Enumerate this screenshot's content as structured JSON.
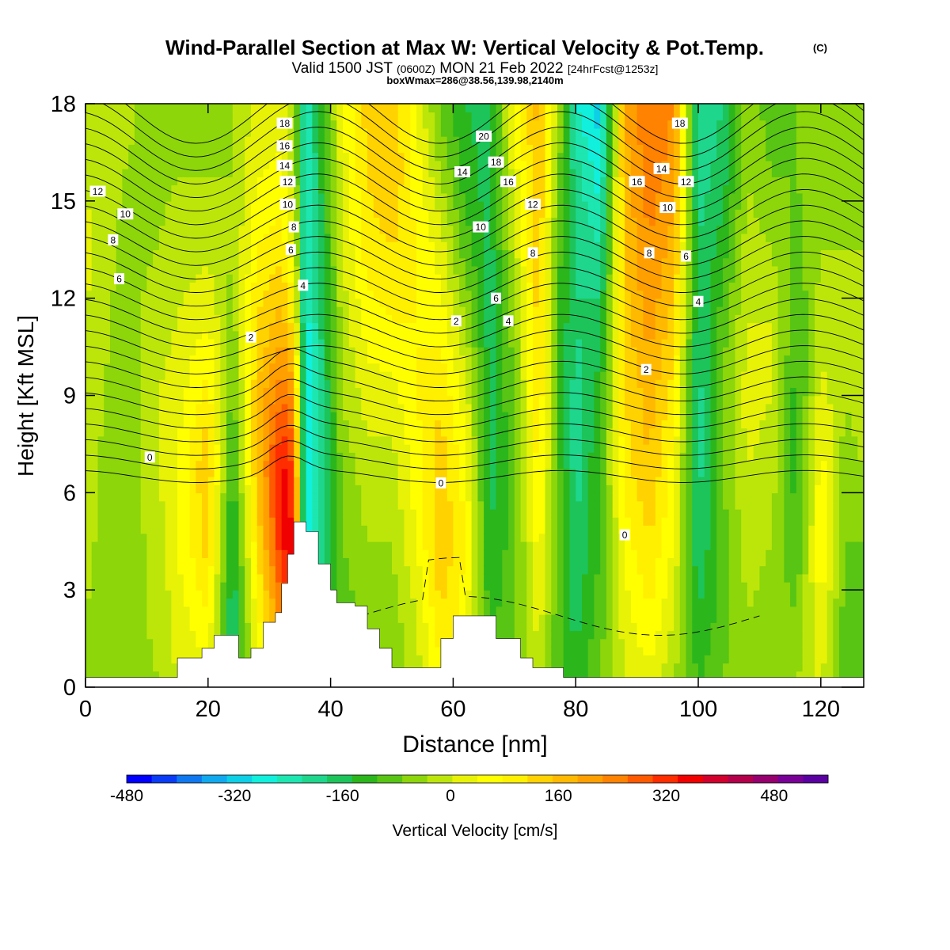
{
  "title": {
    "main": "Wind-Parallel Section at Max W: Vertical Velocity & Pot.Temp.",
    "copyright": "(C)",
    "valid_prefix": "Valid 1500 JST",
    "valid_utc": "(0600Z)",
    "valid_date": "MON 21 Feb 2022",
    "forecast": "[24hrFcst@1253z]",
    "box_info": "boxWmax=286@38.56,139.98,2140m"
  },
  "chart_data": {
    "type": "heatmap",
    "xlabel": "Distance [nm]",
    "ylabel": "Height [Kft MSL]",
    "xlim": [
      0,
      127
    ],
    "ylim": [
      0,
      18
    ],
    "x_ticks": [
      "0",
      "20",
      "40",
      "60",
      "80",
      "100",
      "120"
    ],
    "y_ticks": [
      "0",
      "3",
      "6",
      "9",
      "12",
      "15",
      "18"
    ],
    "x_tick_values": [
      0,
      20,
      40,
      60,
      80,
      100,
      120
    ],
    "y_tick_values": [
      0,
      3,
      6,
      9,
      12,
      15,
      18
    ],
    "colorbar": {
      "label": "Vertical Velocity [cm/s]",
      "min": -480,
      "max": 560,
      "step": 40,
      "tick_labels": [
        "-480",
        "-320",
        "-160",
        "0",
        "160",
        "320",
        "480"
      ],
      "tick_values": [
        -480,
        -320,
        -160,
        0,
        160,
        320,
        480
      ],
      "colors": [
        "#0000ff",
        "#0a3cf5",
        "#0f78f0",
        "#10a9f0",
        "#0dcfe6",
        "#11f0dc",
        "#1de6b0",
        "#1ed68c",
        "#1cc45a",
        "#2bb61c",
        "#58c414",
        "#8cd60a",
        "#bce60a",
        "#e8f206",
        "#ffff00",
        "#fff000",
        "#ffd200",
        "#ffba00",
        "#ffa000",
        "#ff8200",
        "#ff5a00",
        "#ff2d00",
        "#f00000",
        "#d2002d",
        "#b4004b",
        "#96006e",
        "#780096",
        "#5a00a0"
      ]
    },
    "columns": [
      {
        "x": 0,
        "w": [
          0,
          0,
          10,
          20,
          30,
          40,
          50,
          40,
          30
        ]
      },
      {
        "x": 6,
        "w": [
          -20,
          -20,
          -30,
          -40,
          -30,
          -20,
          -10,
          0,
          10
        ]
      },
      {
        "x": 12,
        "w": [
          0,
          10,
          20,
          40,
          40,
          20,
          0,
          -10,
          -20
        ]
      },
      {
        "x": 15,
        "w": [
          40,
          60,
          80,
          80,
          60,
          40,
          20,
          0,
          -10
        ]
      },
      {
        "x": 20,
        "w": [
          60,
          120,
          180,
          200,
          140,
          80,
          30,
          0,
          -20
        ]
      },
      {
        "x": 24,
        "w": [
          -140,
          -160,
          -140,
          -100,
          -60,
          -20,
          0,
          0,
          0
        ]
      },
      {
        "x": 28,
        "w": [
          60,
          100,
          160,
          200,
          200,
          160,
          120,
          80,
          50
        ]
      },
      {
        "x": 32,
        "w": [
          200,
          300,
          400,
          420,
          320,
          220,
          150,
          90,
          60
        ]
      },
      {
        "x": 34,
        "w": [
          300,
          380,
          420,
          360,
          260,
          140,
          60,
          20,
          0
        ]
      },
      {
        "x": 36,
        "w": [
          -220,
          -280,
          -300,
          -300,
          -280,
          -260,
          -240,
          -240,
          -240
        ]
      },
      {
        "x": 38,
        "w": [
          -160,
          -200,
          -220,
          -220,
          -200,
          -180,
          -160,
          -140,
          -120
        ]
      },
      {
        "x": 42,
        "w": [
          -100,
          -60,
          -40,
          -20,
          0,
          20,
          40,
          60,
          80
        ]
      },
      {
        "x": 46,
        "w": [
          -60,
          -30,
          0,
          20,
          60,
          100,
          140,
          160,
          180
        ]
      },
      {
        "x": 50,
        "w": [
          -40,
          -20,
          0,
          20,
          60,
          120,
          160,
          200,
          200
        ]
      },
      {
        "x": 54,
        "w": [
          20,
          40,
          80,
          100,
          120,
          120,
          120,
          100,
          80
        ]
      },
      {
        "x": 58,
        "w": [
          100,
          160,
          200,
          180,
          160,
          100,
          60,
          0,
          -60
        ]
      },
      {
        "x": 62,
        "w": [
          80,
          100,
          120,
          100,
          60,
          0,
          -60,
          -100,
          -120
        ]
      },
      {
        "x": 66,
        "w": [
          -60,
          -100,
          -120,
          -140,
          -140,
          -140,
          -140,
          -140,
          -140
        ]
      },
      {
        "x": 70,
        "w": [
          -20,
          -40,
          -60,
          -60,
          -40,
          -20,
          20,
          60,
          100
        ]
      },
      {
        "x": 74,
        "w": [
          20,
          60,
          100,
          140,
          160,
          180,
          200,
          200,
          220
        ]
      },
      {
        "x": 77,
        "w": [
          -60,
          -60,
          -40,
          -60,
          -80,
          -80,
          -60,
          -20,
          20
        ]
      },
      {
        "x": 80,
        "w": [
          -100,
          -140,
          -160,
          -180,
          -180,
          -160,
          -160,
          -180,
          -240
        ]
      },
      {
        "x": 84,
        "w": [
          -40,
          -60,
          -80,
          -80,
          -100,
          -140,
          -200,
          -260,
          -300
        ]
      },
      {
        "x": 88,
        "w": [
          40,
          60,
          100,
          140,
          160,
          180,
          200,
          220,
          240
        ]
      },
      {
        "x": 92,
        "w": [
          60,
          120,
          160,
          200,
          220,
          260,
          280,
          300,
          320
        ]
      },
      {
        "x": 96,
        "w": [
          0,
          40,
          80,
          100,
          140,
          180,
          220,
          260,
          280
        ]
      },
      {
        "x": 100,
        "w": [
          -80,
          -120,
          -160,
          -180,
          -180,
          -160,
          -160,
          -180,
          -200
        ]
      },
      {
        "x": 104,
        "w": [
          -40,
          -60,
          -60,
          -40,
          -40,
          -60,
          -100,
          -140,
          -160
        ]
      },
      {
        "x": 108,
        "w": [
          0,
          0,
          20,
          40,
          60,
          40,
          20,
          0,
          -20
        ]
      },
      {
        "x": 112,
        "w": [
          -40,
          -20,
          0,
          20,
          40,
          40,
          0,
          -40,
          -60
        ]
      },
      {
        "x": 116,
        "w": [
          0,
          -40,
          -80,
          -100,
          -100,
          -80,
          -60,
          -40,
          -40
        ]
      },
      {
        "x": 120,
        "w": [
          40,
          80,
          120,
          100,
          60,
          20,
          0,
          -20,
          -20
        ]
      },
      {
        "x": 124,
        "w": [
          -60,
          -60,
          -40,
          -20,
          0,
          20,
          0,
          -20,
          -40
        ]
      },
      {
        "x": 127,
        "w": [
          -80,
          -60,
          -40,
          0,
          20,
          20,
          0,
          -20,
          -40
        ]
      }
    ],
    "terrain": [
      {
        "x": 0,
        "h": 0.3
      },
      {
        "x": 14,
        "h": 0.3
      },
      {
        "x": 15,
        "h": 0.9
      },
      {
        "x": 19,
        "h": 1.2
      },
      {
        "x": 21,
        "h": 1.6
      },
      {
        "x": 24,
        "h": 1.6
      },
      {
        "x": 25,
        "h": 0.9
      },
      {
        "x": 27,
        "h": 1.2
      },
      {
        "x": 29,
        "h": 2.0
      },
      {
        "x": 31,
        "h": 2.3
      },
      {
        "x": 32,
        "h": 3.2
      },
      {
        "x": 33,
        "h": 4.1
      },
      {
        "x": 34,
        "h": 5.1
      },
      {
        "x": 36,
        "h": 4.8
      },
      {
        "x": 38,
        "h": 3.8
      },
      {
        "x": 40,
        "h": 3.0
      },
      {
        "x": 41,
        "h": 2.6
      },
      {
        "x": 44,
        "h": 2.5
      },
      {
        "x": 46,
        "h": 1.8
      },
      {
        "x": 48,
        "h": 1.2
      },
      {
        "x": 50,
        "h": 0.6
      },
      {
        "x": 55,
        "h": 0.6
      },
      {
        "x": 58,
        "h": 1.5
      },
      {
        "x": 60,
        "h": 2.2
      },
      {
        "x": 65,
        "h": 2.2
      },
      {
        "x": 67,
        "h": 1.5
      },
      {
        "x": 71,
        "h": 0.9
      },
      {
        "x": 73,
        "h": 0.6
      },
      {
        "x": 77,
        "h": 0.6
      },
      {
        "x": 78,
        "h": 0.3
      },
      {
        "x": 127,
        "h": 0.3
      }
    ],
    "isentrope_labels": [
      {
        "text": "18",
        "x": 32.5,
        "y": 17.4
      },
      {
        "text": "16",
        "x": 32.5,
        "y": 16.7
      },
      {
        "text": "14",
        "x": 32.5,
        "y": 16.1
      },
      {
        "text": "12",
        "x": 33,
        "y": 15.6
      },
      {
        "text": "10",
        "x": 33,
        "y": 14.9
      },
      {
        "text": "8",
        "x": 34,
        "y": 14.2
      },
      {
        "text": "6",
        "x": 33.5,
        "y": 13.5
      },
      {
        "text": "4",
        "x": 35.5,
        "y": 12.4
      },
      {
        "text": "2",
        "x": 27,
        "y": 10.8
      },
      {
        "text": "0",
        "x": 10.5,
        "y": 7.1
      },
      {
        "text": "12",
        "x": 2,
        "y": 15.3
      },
      {
        "text": "10",
        "x": 6.5,
        "y": 14.6
      },
      {
        "text": "8",
        "x": 4.5,
        "y": 13.8
      },
      {
        "text": "6",
        "x": 5.5,
        "y": 12.6
      },
      {
        "text": "20",
        "x": 65,
        "y": 17.0
      },
      {
        "text": "18",
        "x": 67,
        "y": 16.2
      },
      {
        "text": "16",
        "x": 69,
        "y": 15.6
      },
      {
        "text": "14",
        "x": 61.5,
        "y": 15.9
      },
      {
        "text": "12",
        "x": 73,
        "y": 14.9
      },
      {
        "text": "10",
        "x": 64.5,
        "y": 14.2
      },
      {
        "text": "8",
        "x": 73,
        "y": 13.4
      },
      {
        "text": "6",
        "x": 67,
        "y": 12.0
      },
      {
        "text": "4",
        "x": 69,
        "y": 11.3
      },
      {
        "text": "2",
        "x": 60.5,
        "y": 11.3
      },
      {
        "text": "0",
        "x": 58,
        "y": 6.3
      },
      {
        "text": "0",
        "x": 88,
        "y": 4.7
      },
      {
        "text": "18",
        "x": 97,
        "y": 17.4
      },
      {
        "text": "16",
        "x": 90,
        "y": 15.6
      },
      {
        "text": "14",
        "x": 94,
        "y": 16.0
      },
      {
        "text": "12",
        "x": 98,
        "y": 15.6
      },
      {
        "text": "10",
        "x": 95,
        "y": 14.8
      },
      {
        "text": "8",
        "x": 92,
        "y": 13.4
      },
      {
        "text": "6",
        "x": 98,
        "y": 13.3
      },
      {
        "text": "4",
        "x": 100,
        "y": 11.9
      },
      {
        "text": "2",
        "x": 91.5,
        "y": 9.8
      }
    ],
    "grid": false,
    "legend_placement": "bottom colorbar"
  }
}
